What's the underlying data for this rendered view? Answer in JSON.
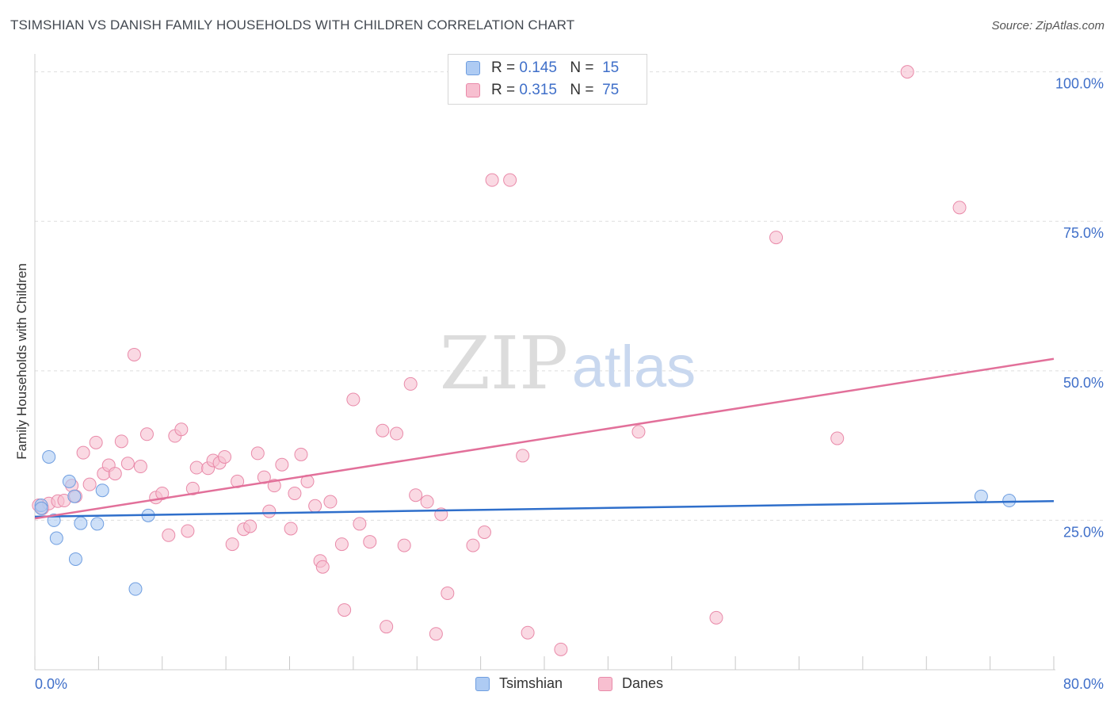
{
  "title": "TSIMSHIAN VS DANISH FAMILY HOUSEHOLDS WITH CHILDREN CORRELATION CHART",
  "source": "Source: ZipAtlas.com",
  "colors": {
    "tsimshian_fill": "#aecbf3",
    "tsimshian_stroke": "#6f9ee0",
    "tsimshian_line": "#2f6fcb",
    "danes_fill": "#f7bfd0",
    "danes_stroke": "#e98aa9",
    "danes_line": "#e2709a",
    "axis_label": "#3f6fc9"
  },
  "legend": {
    "rows": [
      {
        "r_label": "R =",
        "r_value": "0.145",
        "n_label": "N =",
        "n_value": "15"
      },
      {
        "r_label": "R =",
        "r_value": "0.315",
        "n_label": "N =",
        "n_value": "75"
      }
    ]
  },
  "bottom_legend": {
    "tsimshian": "Tsimshian",
    "danes": "Danes"
  },
  "watermark": {
    "zip": "ZIP",
    "atlas": "atlas"
  },
  "chart_data": {
    "type": "scatter",
    "title": "TSIMSHIAN VS DANISH FAMILY HOUSEHOLDS WITH CHILDREN CORRELATION CHART",
    "xlabel": "",
    "ylabel": "Family Households with Children",
    "xlim": [
      0,
      80
    ],
    "ylim": [
      0,
      103
    ],
    "x_tick_labels": [
      "0.0%",
      "80.0%"
    ],
    "y_ticks": [
      25,
      50,
      75,
      100
    ],
    "y_tick_labels": [
      "25.0%",
      "50.0%",
      "75.0%",
      "100.0%"
    ],
    "grid": true,
    "series": [
      {
        "name": "Tsimshian",
        "points": [
          [
            0.5,
            27.5
          ],
          [
            0.5,
            27.0
          ],
          [
            1.1,
            35.6
          ],
          [
            1.5,
            25.0
          ],
          [
            1.7,
            22.0
          ],
          [
            2.7,
            31.5
          ],
          [
            3.1,
            29.0
          ],
          [
            3.2,
            18.5
          ],
          [
            3.6,
            24.5
          ],
          [
            4.9,
            24.4
          ],
          [
            5.3,
            30.0
          ],
          [
            7.9,
            13.5
          ],
          [
            8.9,
            25.8
          ],
          [
            74.3,
            29.0
          ],
          [
            76.5,
            28.3
          ]
        ],
        "trend": {
          "x": [
            0,
            80
          ],
          "y": [
            25.6,
            28.2
          ]
        }
      },
      {
        "name": "Danes",
        "points": [
          [
            0.3,
            27.5
          ],
          [
            0.6,
            27.0
          ],
          [
            1.1,
            27.8
          ],
          [
            1.8,
            28.2
          ],
          [
            2.3,
            28.3
          ],
          [
            2.9,
            30.8
          ],
          [
            3.2,
            29.0
          ],
          [
            3.8,
            36.3
          ],
          [
            4.3,
            31.0
          ],
          [
            4.8,
            38.0
          ],
          [
            5.4,
            32.8
          ],
          [
            5.8,
            34.2
          ],
          [
            6.3,
            32.8
          ],
          [
            6.8,
            38.2
          ],
          [
            7.3,
            34.5
          ],
          [
            7.8,
            52.7
          ],
          [
            8.3,
            34.0
          ],
          [
            8.8,
            39.4
          ],
          [
            9.5,
            28.8
          ],
          [
            10.0,
            29.5
          ],
          [
            10.5,
            22.5
          ],
          [
            11.0,
            39.1
          ],
          [
            11.5,
            40.2
          ],
          [
            12.0,
            23.2
          ],
          [
            12.4,
            30.3
          ],
          [
            12.7,
            33.8
          ],
          [
            13.6,
            33.7
          ],
          [
            14.0,
            35.0
          ],
          [
            14.5,
            34.6
          ],
          [
            14.9,
            35.6
          ],
          [
            15.5,
            21.0
          ],
          [
            15.9,
            31.5
          ],
          [
            16.4,
            23.5
          ],
          [
            16.9,
            24.0
          ],
          [
            17.5,
            36.2
          ],
          [
            18.0,
            32.2
          ],
          [
            18.4,
            26.5
          ],
          [
            18.8,
            30.8
          ],
          [
            19.4,
            34.3
          ],
          [
            20.1,
            23.6
          ],
          [
            20.4,
            29.5
          ],
          [
            20.9,
            36.0
          ],
          [
            21.4,
            31.5
          ],
          [
            22.0,
            27.4
          ],
          [
            22.4,
            18.2
          ],
          [
            22.6,
            17.2
          ],
          [
            23.2,
            28.1
          ],
          [
            24.1,
            21.0
          ],
          [
            24.3,
            10.0
          ],
          [
            25.0,
            45.2
          ],
          [
            25.5,
            24.4
          ],
          [
            26.3,
            21.4
          ],
          [
            27.3,
            40.0
          ],
          [
            27.6,
            7.2
          ],
          [
            28.4,
            39.5
          ],
          [
            29.0,
            20.8
          ],
          [
            29.5,
            47.8
          ],
          [
            29.9,
            29.2
          ],
          [
            30.8,
            28.1
          ],
          [
            31.5,
            6.0
          ],
          [
            31.9,
            26.0
          ],
          [
            32.4,
            12.8
          ],
          [
            34.4,
            20.8
          ],
          [
            35.3,
            23.0
          ],
          [
            35.9,
            81.9
          ],
          [
            37.3,
            81.9
          ],
          [
            38.3,
            35.8
          ],
          [
            38.7,
            6.2
          ],
          [
            41.3,
            3.4
          ],
          [
            47.4,
            39.8
          ],
          [
            53.5,
            8.7
          ],
          [
            58.2,
            72.3
          ],
          [
            63.0,
            38.7
          ],
          [
            68.5,
            100.0
          ],
          [
            72.6,
            77.3
          ]
        ],
        "trend": {
          "x": [
            0,
            80
          ],
          "y": [
            25.3,
            52.0
          ]
        }
      }
    ]
  }
}
